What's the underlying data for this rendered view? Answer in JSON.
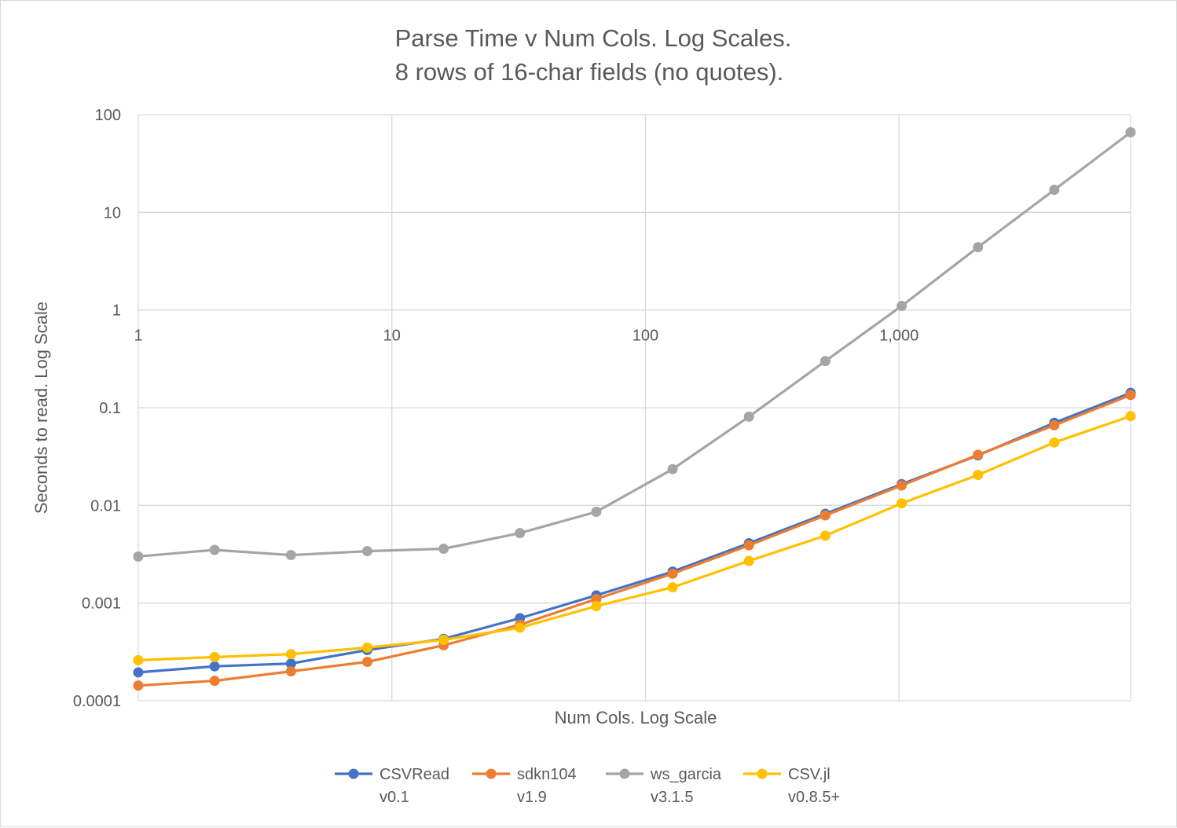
{
  "chart_data": {
    "type": "line",
    "title_lines": [
      "Parse Time v Num Cols. Log Scales.",
      "8 rows of 16-char fields (no quotes)."
    ],
    "xlabel": "Num Cols. Log Scale",
    "ylabel": "Seconds to read. Log Scale",
    "x_scale": "log",
    "y_scale": "log",
    "xlim": [
      1,
      8192
    ],
    "ylim": [
      0.0001,
      100
    ],
    "grid": true,
    "legend_position": "bottom",
    "x_ticks": [
      {
        "value": 1,
        "label": "1"
      },
      {
        "value": 10,
        "label": "10"
      },
      {
        "value": 100,
        "label": "100"
      },
      {
        "value": 1000,
        "label": "1,000"
      }
    ],
    "y_ticks": [
      {
        "value": 100,
        "label": "100"
      },
      {
        "value": 10,
        "label": "10"
      },
      {
        "value": 1,
        "label": "1"
      },
      {
        "value": 0.1,
        "label": "0.1"
      },
      {
        "value": 0.01,
        "label": "0.01"
      },
      {
        "value": 0.001,
        "label": "0.001"
      },
      {
        "value": 0.0001,
        "label": "0.0001"
      }
    ],
    "x": [
      1,
      2,
      4,
      8,
      16,
      32,
      64,
      128,
      256,
      512,
      1024,
      2048,
      4096,
      8192
    ],
    "series": [
      {
        "name": "CSVRead",
        "version": "v0.1",
        "color": "#4472c4",
        "values": [
          0.000195,
          0.000225,
          0.00024,
          0.00033,
          0.00043,
          0.0007,
          0.0012,
          0.0021,
          0.0041,
          0.0082,
          0.0165,
          0.0325,
          0.07,
          0.142
        ]
      },
      {
        "name": "sdkn104",
        "version": "v1.9",
        "color": "#ed7d31",
        "values": [
          0.000143,
          0.00016,
          0.0002,
          0.00025,
          0.00037,
          0.0006,
          0.0011,
          0.002,
          0.0039,
          0.0079,
          0.016,
          0.033,
          0.066,
          0.135
        ]
      },
      {
        "name": "ws_garcia",
        "version": "v3.1.5",
        "color": "#a5a5a5",
        "values": [
          0.003,
          0.0035,
          0.0031,
          0.0034,
          0.0036,
          0.0052,
          0.0086,
          0.0235,
          0.081,
          0.3,
          1.1,
          4.4,
          17,
          66
        ]
      },
      {
        "name": "CSV.jl",
        "version": "v0.8.5+",
        "color": "#ffc000",
        "values": [
          0.00026,
          0.00028,
          0.0003,
          0.00035,
          0.00042,
          0.00056,
          0.00093,
          0.00145,
          0.0027,
          0.0049,
          0.0105,
          0.0205,
          0.044,
          0.082
        ]
      }
    ]
  }
}
